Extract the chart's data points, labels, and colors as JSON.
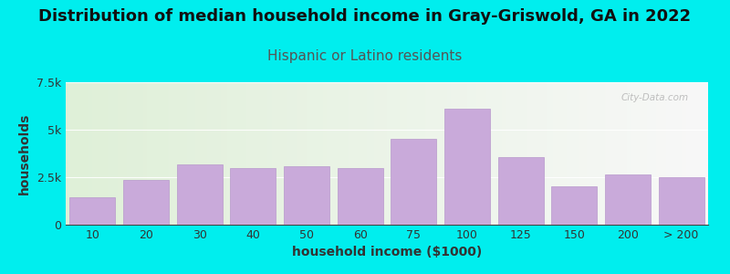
{
  "title": "Distribution of median household income in Gray-Griswold, GA in 2022",
  "subtitle": "Hispanic or Latino residents",
  "xlabel": "household income ($1000)",
  "ylabel": "households",
  "bar_color": "#c9aada",
  "bar_edge_color": "#b898cc",
  "background_color": "#00eeee",
  "plot_bg_left": "#dff0d8",
  "plot_bg_right": "#f8f8f8",
  "categories": [
    "10",
    "20",
    "30",
    "40",
    "50",
    "60",
    "75",
    "100",
    "125",
    "150",
    "200",
    "> 200"
  ],
  "values": [
    1450,
    2350,
    3150,
    3000,
    3100,
    3000,
    4500,
    6100,
    3550,
    2000,
    2650,
    2500
  ],
  "ylim": [
    0,
    7500
  ],
  "yticks": [
    0,
    2500,
    5000,
    7500
  ],
  "ytick_labels": [
    "0",
    "2.5k",
    "5k",
    "7.5k"
  ],
  "title_fontsize": 13,
  "subtitle_fontsize": 11,
  "axis_label_fontsize": 10,
  "tick_fontsize": 9,
  "title_color": "#111111",
  "subtitle_color": "#555555",
  "watermark_text": "City-Data.com",
  "watermark_color": "#b0b0b0"
}
